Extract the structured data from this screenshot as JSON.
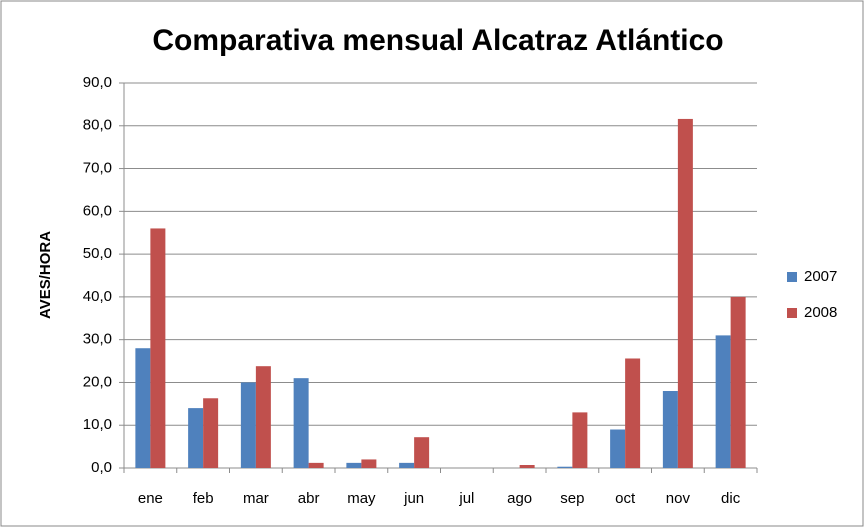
{
  "chart_data": {
    "type": "bar",
    "title": "Comparativa mensual Alcatraz Atlántico",
    "y_label": "AVES/HORA",
    "categories": [
      "ene",
      "feb",
      "mar",
      "abr",
      "may",
      "jun",
      "jul",
      "ago",
      "sep",
      "oct",
      "nov",
      "dic"
    ],
    "series": [
      {
        "name": "2007",
        "color": "#4f81bd",
        "values": [
          28,
          14,
          20,
          21,
          1.2,
          1.2,
          0,
          0,
          0.3,
          9,
          18,
          31
        ]
      },
      {
        "name": "2008",
        "color": "#c0504d",
        "values": [
          56,
          16.3,
          23.8,
          1.2,
          2,
          7.2,
          0,
          0.7,
          13,
          25.6,
          81.6,
          40
        ]
      }
    ],
    "ylim": [
      0,
      90
    ],
    "yticks": [
      {
        "value": 0,
        "label": "0,0"
      },
      {
        "value": 10,
        "label": "10,0"
      },
      {
        "value": 20,
        "label": "20,0"
      },
      {
        "value": 30,
        "label": "30,0"
      },
      {
        "value": 40,
        "label": "40,0"
      },
      {
        "value": 50,
        "label": "50,0"
      },
      {
        "value": 60,
        "label": "60,0"
      },
      {
        "value": 70,
        "label": "70,0"
      },
      {
        "value": 80,
        "label": "80,0"
      },
      {
        "value": 90,
        "label": "90,0"
      }
    ],
    "grid": true,
    "legend": "right"
  }
}
